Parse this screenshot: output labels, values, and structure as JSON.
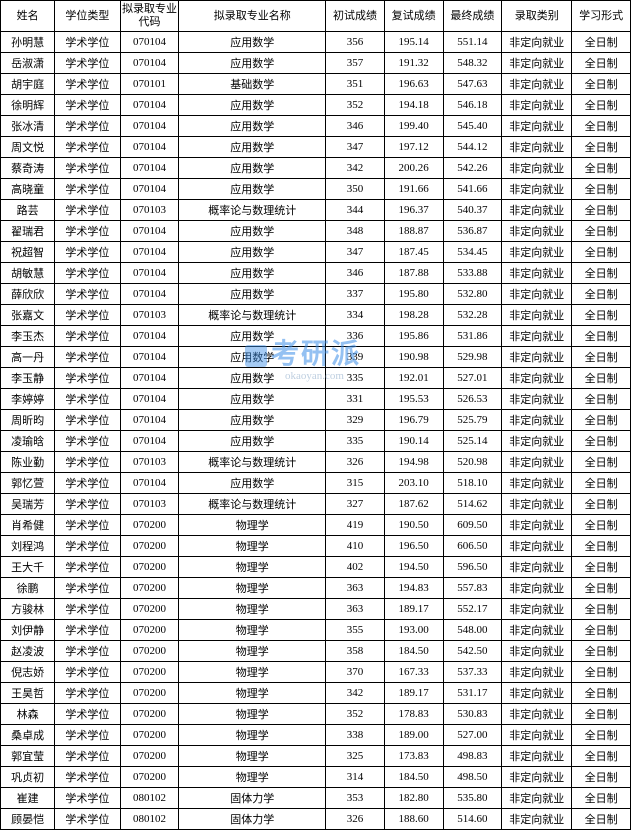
{
  "columns": [
    "姓名",
    "学位类型",
    "拟录取专业代码",
    "拟录取专业名称",
    "初试成绩",
    "复试成绩",
    "最终成绩",
    "录取类别",
    "学习形式"
  ],
  "rows": [
    [
      "孙明慧",
      "学术学位",
      "070104",
      "应用数学",
      "356",
      "195.14",
      "551.14",
      "非定向就业",
      "全日制"
    ],
    [
      "岳淑潇",
      "学术学位",
      "070104",
      "应用数学",
      "357",
      "191.32",
      "548.32",
      "非定向就业",
      "全日制"
    ],
    [
      "胡宇庭",
      "学术学位",
      "070101",
      "基础数学",
      "351",
      "196.63",
      "547.63",
      "非定向就业",
      "全日制"
    ],
    [
      "徐明辉",
      "学术学位",
      "070104",
      "应用数学",
      "352",
      "194.18",
      "546.18",
      "非定向就业",
      "全日制"
    ],
    [
      "张冰清",
      "学术学位",
      "070104",
      "应用数学",
      "346",
      "199.40",
      "545.40",
      "非定向就业",
      "全日制"
    ],
    [
      "周文悦",
      "学术学位",
      "070104",
      "应用数学",
      "347",
      "197.12",
      "544.12",
      "非定向就业",
      "全日制"
    ],
    [
      "蔡奇涛",
      "学术学位",
      "070104",
      "应用数学",
      "342",
      "200.26",
      "542.26",
      "非定向就业",
      "全日制"
    ],
    [
      "高晓童",
      "学术学位",
      "070104",
      "应用数学",
      "350",
      "191.66",
      "541.66",
      "非定向就业",
      "全日制"
    ],
    [
      "路芸",
      "学术学位",
      "070103",
      "概率论与数理统计",
      "344",
      "196.37",
      "540.37",
      "非定向就业",
      "全日制"
    ],
    [
      "翟瑞君",
      "学术学位",
      "070104",
      "应用数学",
      "348",
      "188.87",
      "536.87",
      "非定向就业",
      "全日制"
    ],
    [
      "祝超智",
      "学术学位",
      "070104",
      "应用数学",
      "347",
      "187.45",
      "534.45",
      "非定向就业",
      "全日制"
    ],
    [
      "胡敏慧",
      "学术学位",
      "070104",
      "应用数学",
      "346",
      "187.88",
      "533.88",
      "非定向就业",
      "全日制"
    ],
    [
      "薛欣欣",
      "学术学位",
      "070104",
      "应用数学",
      "337",
      "195.80",
      "532.80",
      "非定向就业",
      "全日制"
    ],
    [
      "张嘉文",
      "学术学位",
      "070103",
      "概率论与数理统计",
      "334",
      "198.28",
      "532.28",
      "非定向就业",
      "全日制"
    ],
    [
      "李玉杰",
      "学术学位",
      "070104",
      "应用数学",
      "336",
      "195.86",
      "531.86",
      "非定向就业",
      "全日制"
    ],
    [
      "高一丹",
      "学术学位",
      "070104",
      "应用数学",
      "339",
      "190.98",
      "529.98",
      "非定向就业",
      "全日制"
    ],
    [
      "李玉静",
      "学术学位",
      "070104",
      "应用数学",
      "335",
      "192.01",
      "527.01",
      "非定向就业",
      "全日制"
    ],
    [
      "李婷婷",
      "学术学位",
      "070104",
      "应用数学",
      "331",
      "195.53",
      "526.53",
      "非定向就业",
      "全日制"
    ],
    [
      "周昕昀",
      "学术学位",
      "070104",
      "应用数学",
      "329",
      "196.79",
      "525.79",
      "非定向就业",
      "全日制"
    ],
    [
      "凌瑜晗",
      "学术学位",
      "070104",
      "应用数学",
      "335",
      "190.14",
      "525.14",
      "非定向就业",
      "全日制"
    ],
    [
      "陈业勤",
      "学术学位",
      "070103",
      "概率论与数理统计",
      "326",
      "194.98",
      "520.98",
      "非定向就业",
      "全日制"
    ],
    [
      "郭忆萱",
      "学术学位",
      "070104",
      "应用数学",
      "315",
      "203.10",
      "518.10",
      "非定向就业",
      "全日制"
    ],
    [
      "吴瑞芳",
      "学术学位",
      "070103",
      "概率论与数理统计",
      "327",
      "187.62",
      "514.62",
      "非定向就业",
      "全日制"
    ],
    [
      "肖希健",
      "学术学位",
      "070200",
      "物理学",
      "419",
      "190.50",
      "609.50",
      "非定向就业",
      "全日制"
    ],
    [
      "刘程鸿",
      "学术学位",
      "070200",
      "物理学",
      "410",
      "196.50",
      "606.50",
      "非定向就业",
      "全日制"
    ],
    [
      "王大千",
      "学术学位",
      "070200",
      "物理学",
      "402",
      "194.50",
      "596.50",
      "非定向就业",
      "全日制"
    ],
    [
      "徐鹏",
      "学术学位",
      "070200",
      "物理学",
      "363",
      "194.83",
      "557.83",
      "非定向就业",
      "全日制"
    ],
    [
      "方骏林",
      "学术学位",
      "070200",
      "物理学",
      "363",
      "189.17",
      "552.17",
      "非定向就业",
      "全日制"
    ],
    [
      "刘伊静",
      "学术学位",
      "070200",
      "物理学",
      "355",
      "193.00",
      "548.00",
      "非定向就业",
      "全日制"
    ],
    [
      "赵凌波",
      "学术学位",
      "070200",
      "物理学",
      "358",
      "184.50",
      "542.50",
      "非定向就业",
      "全日制"
    ],
    [
      "倪志娇",
      "学术学位",
      "070200",
      "物理学",
      "370",
      "167.33",
      "537.33",
      "非定向就业",
      "全日制"
    ],
    [
      "王昊哲",
      "学术学位",
      "070200",
      "物理学",
      "342",
      "189.17",
      "531.17",
      "非定向就业",
      "全日制"
    ],
    [
      "林森",
      "学术学位",
      "070200",
      "物理学",
      "352",
      "178.83",
      "530.83",
      "非定向就业",
      "全日制"
    ],
    [
      "桑卓成",
      "学术学位",
      "070200",
      "物理学",
      "338",
      "189.00",
      "527.00",
      "非定向就业",
      "全日制"
    ],
    [
      "郭宜莹",
      "学术学位",
      "070200",
      "物理学",
      "325",
      "173.83",
      "498.83",
      "非定向就业",
      "全日制"
    ],
    [
      "巩贞初",
      "学术学位",
      "070200",
      "物理学",
      "314",
      "184.50",
      "498.50",
      "非定向就业",
      "全日制"
    ],
    [
      "崔建",
      "学术学位",
      "080102",
      "固体力学",
      "353",
      "182.80",
      "535.80",
      "非定向就业",
      "全日制"
    ],
    [
      "顾晏恺",
      "学术学位",
      "080102",
      "固体力学",
      "326",
      "188.60",
      "514.60",
      "非定向就业",
      "全日制"
    ]
  ],
  "watermark": {
    "main": "考研派",
    "sub": "okaoyan.com"
  },
  "colors": {
    "border": "#000000",
    "background": "#ffffff",
    "watermark": "#3d8fe8",
    "watermark_sub": "#8aa8c8"
  },
  "col_classes": [
    "col-name",
    "col-deg",
    "col-code",
    "col-major",
    "col-s1",
    "col-s2",
    "col-s3",
    "col-cat",
    "col-mode"
  ]
}
